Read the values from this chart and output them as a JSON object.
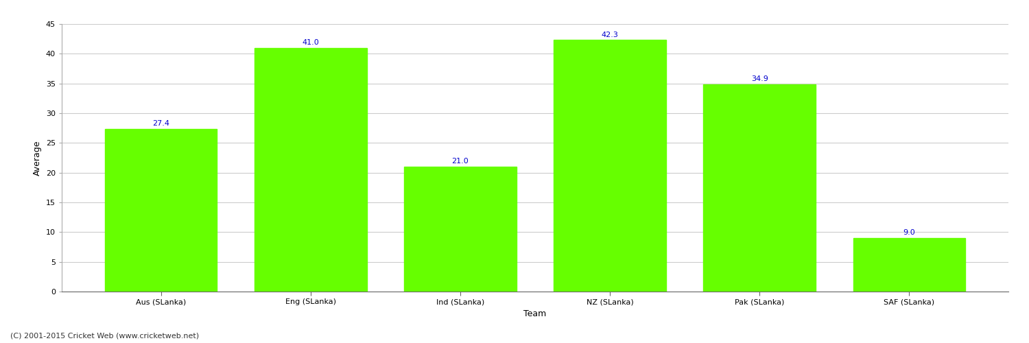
{
  "categories": [
    "Aus (SLanka)",
    "Eng (SLanka)",
    "Ind (SLanka)",
    "NZ (SLanka)",
    "Pak (SLanka)",
    "SAF (SLanka)"
  ],
  "values": [
    27.4,
    41.0,
    21.0,
    42.3,
    34.9,
    9.0
  ],
  "bar_color": "#66ff00",
  "bar_edgecolor": "#66ff00",
  "value_label_color": "#0000cc",
  "value_label_fontsize": 8,
  "title": "",
  "xlabel": "Team",
  "ylabel": "Average",
  "ylim": [
    0,
    45
  ],
  "yticks": [
    0,
    5,
    10,
    15,
    20,
    25,
    30,
    35,
    40,
    45
  ],
  "grid_color": "#cccccc",
  "background_color": "#ffffff",
  "footer_text": "(C) 2001-2015 Cricket Web (www.cricketweb.net)",
  "footer_fontsize": 8,
  "footer_color": "#333333",
  "tick_label_fontsize": 8,
  "axis_label_fontsize": 9,
  "bar_width": 0.75
}
